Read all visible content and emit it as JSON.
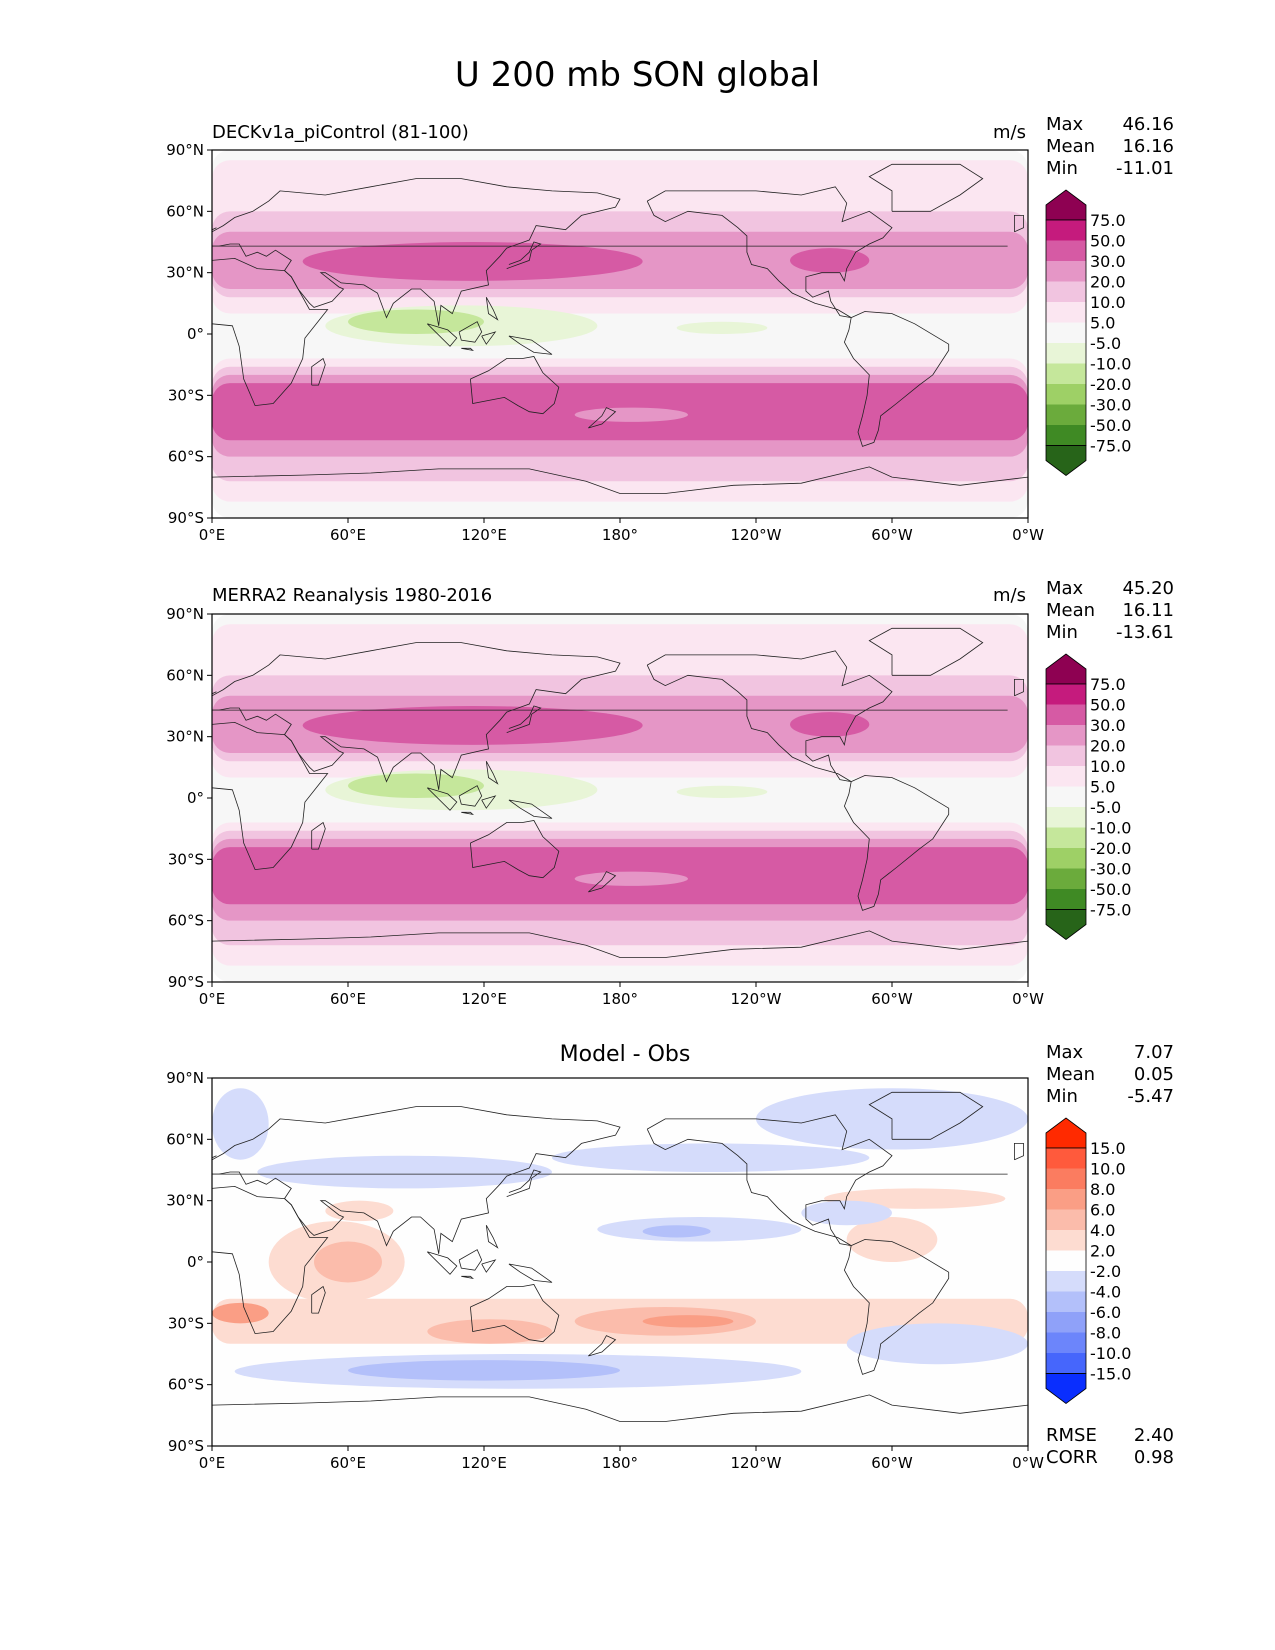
{
  "title": "U 200 mb SON global",
  "axes": {
    "lat_labels": [
      "90°N",
      "60°N",
      "30°N",
      "0°",
      "30°S",
      "60°S",
      "90°S"
    ],
    "lon_labels": [
      "0°E",
      "60°E",
      "120°E",
      "180°",
      "120°W",
      "60°W",
      "0°W"
    ],
    "lat_range": [
      -90,
      90
    ],
    "lon_range": [
      0,
      360
    ]
  },
  "panels": [
    {
      "title": "DECKv1a_piControl (81-100)",
      "units": "m/s",
      "stats": [
        {
          "label": "Max",
          "value": "46.16"
        },
        {
          "label": "Mean",
          "value": "16.16"
        },
        {
          "label": "Min",
          "value": "-11.01"
        }
      ],
      "colorbar": {
        "labels": [
          "75.0",
          "50.0",
          "30.0",
          "20.0",
          "10.0",
          "5.0",
          "-5.0",
          "-10.0",
          "-20.0",
          "-30.0",
          "-50.0",
          "-75.0"
        ],
        "colors": [
          "#8e0152",
          "#c51b7d",
          "#d65aa4",
          "#e596c6",
          "#f1c4e0",
          "#fbe6f1",
          "#f7f7f7",
          "#e8f5d7",
          "#c5e79b",
          "#9ed066",
          "#6bab3c",
          "#3f8a24",
          "#276419"
        ]
      }
    },
    {
      "title": "MERRA2 Reanalysis 1980-2016",
      "units": "m/s",
      "stats": [
        {
          "label": "Max",
          "value": "45.20"
        },
        {
          "label": "Mean",
          "value": "16.11"
        },
        {
          "label": "Min",
          "value": "-13.61"
        }
      ],
      "colorbar": {
        "labels": [
          "75.0",
          "50.0",
          "30.0",
          "20.0",
          "10.0",
          "5.0",
          "-5.0",
          "-10.0",
          "-20.0",
          "-30.0",
          "-50.0",
          "-75.0"
        ],
        "colors": [
          "#8e0152",
          "#c51b7d",
          "#d65aa4",
          "#e596c6",
          "#f1c4e0",
          "#fbe6f1",
          "#f7f7f7",
          "#e8f5d7",
          "#c5e79b",
          "#9ed066",
          "#6bab3c",
          "#3f8a24",
          "#276419"
        ]
      }
    },
    {
      "title": "Model - Obs",
      "units": "",
      "stats": [
        {
          "label": "Max",
          "value": "7.07"
        },
        {
          "label": "Mean",
          "value": "0.05"
        },
        {
          "label": "Min",
          "value": "-5.47"
        }
      ],
      "extra_stats": [
        {
          "label": "RMSE",
          "value": "2.40"
        },
        {
          "label": "CORR",
          "value": "0.98"
        }
      ],
      "colorbar": {
        "labels": [
          "15.0",
          "10.0",
          "8.0",
          "6.0",
          "4.0",
          "2.0",
          "-2.0",
          "-4.0",
          "-6.0",
          "-8.0",
          "-10.0",
          "-15.0"
        ],
        "colors": [
          "#ff2a00",
          "#ff5a3c",
          "#fb7c60",
          "#fa9e85",
          "#fbbcab",
          "#fddcd1",
          "#fefefe",
          "#d5dcfb",
          "#b3c0fa",
          "#8fa1f9",
          "#6c85fb",
          "#4666fc",
          "#0a2efe"
        ]
      }
    }
  ]
}
